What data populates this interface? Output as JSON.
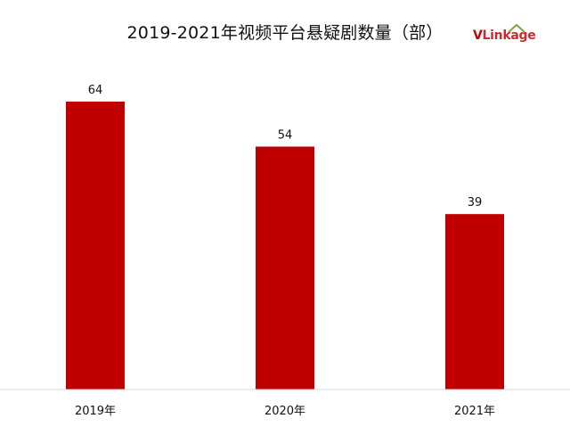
{
  "chart_data": {
    "type": "bar",
    "title": "2019-2021年视频平台悬疑剧数量（部）",
    "categories": [
      "2019年",
      "2020年",
      "2021年"
    ],
    "values": [
      64,
      54,
      39
    ],
    "xlabel": "",
    "ylabel": "",
    "ylim": [
      0,
      64
    ],
    "grid": false,
    "bar_color": "#c00000",
    "data_labels": [
      "64",
      "54",
      "39"
    ]
  },
  "logo": {
    "v": "V",
    "rest": "Linkage",
    "accent_color": "#c80000"
  }
}
